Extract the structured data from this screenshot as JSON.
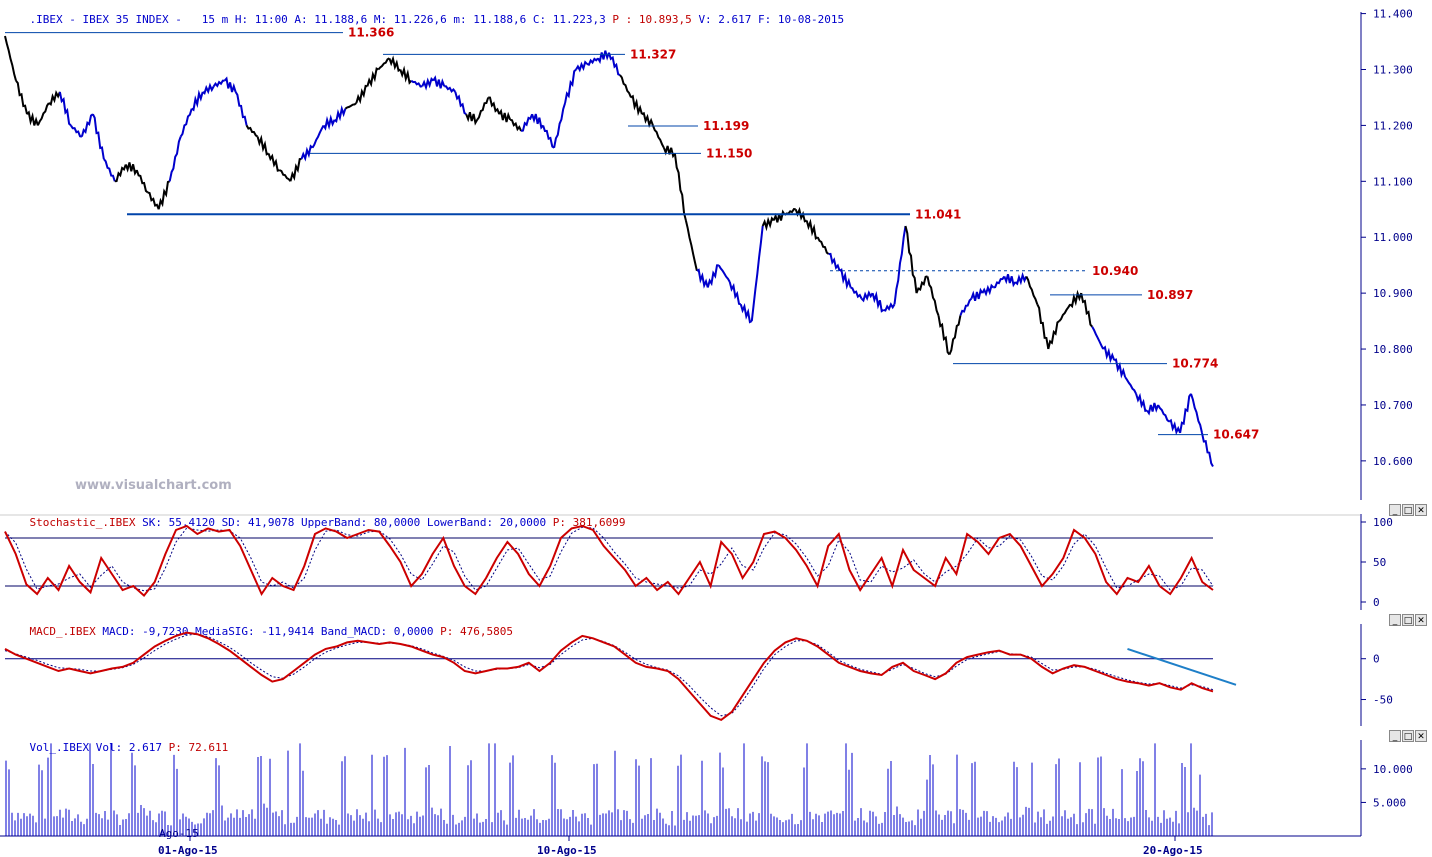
{
  "main_header": {
    "symbol": ".IBEX - IBEX 35 INDEX -",
    "interval": "15 m",
    "ohlc": "H: 11:00 A: 11.188,6 M: 11.226,6 m: 11.188,6 C: 11.223,3",
    "p_label": "P : 10.893,5",
    "vol_date": "V: 2.617 F: 10-08-2015"
  },
  "watermark": "www.visualchart.com",
  "window_buttons": {
    "minimize": "_",
    "restore": "□",
    "close": "✕"
  },
  "stoch_header": {
    "name": "Stochastic_.IBEX",
    "values": "SK: 55,4120 SD: 41,9078 UpperBand: 80,0000 LowerBand: 20,0000",
    "p": "P: 381,6099"
  },
  "macd_header": {
    "name": "MACD_.IBEX",
    "values": "MACD: -9,7230 MediaSIG: -11,9414 Band_MACD: 0,0000",
    "p": "P: 476,5805"
  },
  "vol_header": {
    "name": "Vol_.IBEX",
    "values": "Vol: 2.617",
    "p": "P: 72.611"
  },
  "colors": {
    "axis": "#00008b",
    "up": "#0000cc",
    "down": "#000000",
    "level": "#cc0000",
    "line": "#0044aa",
    "trend": "#1e7fc8"
  },
  "chart_data": [
    {
      "type": "line",
      "title": "IBEX 35 INDEX 15 m",
      "y_ticks": [
        "11.400",
        "11.300",
        "11.200",
        "11.100",
        "11.000",
        "10.900",
        "10.800",
        "10.700",
        "10.600"
      ],
      "ylim": [
        10.53,
        11.41
      ],
      "x_labels": [
        "01-Ago-15",
        "10-Ago-15",
        "20-Ago-15"
      ],
      "x_overlay_label": "Ago-15",
      "levels": [
        {
          "value": 11.366,
          "label": "11.366"
        },
        {
          "value": 11.327,
          "label": "11.327"
        },
        {
          "value": 11.199,
          "label": "11.199"
        },
        {
          "value": 11.15,
          "label": "11.150"
        },
        {
          "value": 11.041,
          "label": "11.041"
        },
        {
          "value": 10.94,
          "label": "10.940"
        },
        {
          "value": 10.897,
          "label": "10.897"
        },
        {
          "value": 10.774,
          "label": "10.774"
        },
        {
          "value": 10.647,
          "label": "10.647"
        }
      ],
      "close": [
        11.36,
        11.28,
        11.22,
        11.2,
        11.24,
        11.26,
        11.2,
        11.18,
        11.22,
        11.14,
        11.1,
        11.13,
        11.12,
        11.08,
        11.05,
        11.1,
        11.18,
        11.23,
        11.26,
        11.27,
        11.28,
        11.26,
        11.2,
        11.18,
        11.15,
        11.12,
        11.1,
        11.14,
        11.16,
        11.2,
        11.21,
        11.23,
        11.24,
        11.27,
        11.3,
        11.32,
        11.3,
        11.28,
        11.27,
        11.28,
        11.27,
        11.26,
        11.22,
        11.21,
        11.25,
        11.22,
        11.21,
        11.19,
        11.22,
        11.2,
        11.16,
        11.24,
        11.3,
        11.31,
        11.32,
        11.33,
        11.29,
        11.25,
        11.22,
        11.2,
        11.16,
        11.15,
        11.03,
        10.94,
        10.91,
        10.95,
        10.92,
        10.88,
        10.85,
        11.02,
        11.03,
        11.04,
        11.05,
        11.03,
        11.0,
        10.97,
        10.94,
        10.91,
        10.89,
        10.9,
        10.87,
        10.88,
        11.02,
        10.9,
        10.93,
        10.86,
        10.79,
        10.86,
        10.89,
        10.9,
        10.91,
        10.93,
        10.92,
        10.93,
        10.88,
        10.8,
        10.85,
        10.88,
        10.9,
        10.84,
        10.8,
        10.78,
        10.75,
        10.72,
        10.69,
        10.7,
        10.67,
        10.65,
        10.72,
        10.65,
        10.59
      ],
      "sessions_dark": [
        [
          0,
          4
        ],
        [
          10,
          14
        ],
        [
          22,
          26
        ],
        [
          31,
          36
        ],
        [
          42,
          46
        ],
        [
          56,
          62
        ],
        [
          69,
          74
        ],
        [
          82,
          86
        ],
        [
          93,
          98
        ]
      ]
    },
    {
      "type": "line",
      "title": "Stochastic_.IBEX",
      "ylim": [
        0,
        100
      ],
      "y_ticks": [
        "100",
        "50",
        "0"
      ],
      "bands": [
        80,
        20
      ],
      "series": [
        {
          "name": "SK",
          "values": [
            88,
            60,
            22,
            10,
            30,
            15,
            45,
            25,
            12,
            55,
            35,
            15,
            20,
            8,
            25,
            60,
            90,
            95,
            85,
            92,
            88,
            90,
            70,
            40,
            10,
            30,
            20,
            15,
            45,
            85,
            92,
            88,
            80,
            85,
            90,
            88,
            70,
            50,
            20,
            35,
            60,
            80,
            45,
            20,
            10,
            30,
            55,
            75,
            60,
            35,
            20,
            45,
            80,
            92,
            95,
            90,
            70,
            55,
            40,
            20,
            30,
            15,
            25,
            10,
            30,
            50,
            20,
            75,
            60,
            30,
            50,
            85,
            88,
            80,
            65,
            45,
            20,
            70,
            85,
            40,
            15,
            35,
            55,
            20,
            65,
            40,
            30,
            20,
            55,
            35,
            85,
            75,
            60,
            80,
            85,
            70,
            45,
            20,
            35,
            55,
            90,
            80,
            60,
            25,
            10,
            30,
            25,
            45,
            20,
            10,
            30,
            55,
            25,
            15
          ]
        }
      ]
    },
    {
      "type": "line",
      "title": "MACD_.IBEX",
      "ylim": [
        -80,
        45
      ],
      "y_ticks": [
        "0",
        "-50"
      ],
      "series": [
        {
          "name": "MACD",
          "values": [
            12,
            5,
            0,
            -5,
            -10,
            -15,
            -12,
            -15,
            -18,
            -15,
            -12,
            -10,
            -5,
            5,
            15,
            22,
            28,
            32,
            30,
            25,
            18,
            10,
            0,
            -10,
            -20,
            -28,
            -25,
            -15,
            -5,
            5,
            12,
            15,
            20,
            22,
            20,
            18,
            20,
            18,
            15,
            10,
            5,
            2,
            -5,
            -15,
            -18,
            -15,
            -12,
            -12,
            -10,
            -5,
            -15,
            -5,
            10,
            20,
            28,
            25,
            20,
            15,
            5,
            -5,
            -10,
            -12,
            -15,
            -25,
            -40,
            -55,
            -70,
            -75,
            -65,
            -45,
            -25,
            -5,
            10,
            20,
            25,
            22,
            15,
            5,
            -5,
            -10,
            -15,
            -18,
            -20,
            -10,
            -5,
            -15,
            -20,
            -25,
            -18,
            -5,
            2,
            5,
            8,
            10,
            5,
            5,
            0,
            -10,
            -18,
            -12,
            -8,
            -10,
            -15,
            -20,
            -25,
            -28,
            -30,
            -33,
            -30,
            -35,
            -38,
            -30,
            -36,
            -40
          ]
        },
        {
          "name": "MediaSIG",
          "values": [
            10,
            6,
            2,
            -2,
            -7,
            -11,
            -12,
            -13,
            -15,
            -15,
            -13,
            -11,
            -7,
            1,
            10,
            18,
            24,
            29,
            30,
            27,
            21,
            14,
            5,
            -5,
            -14,
            -22,
            -24,
            -19,
            -10,
            0,
            8,
            13,
            17,
            20,
            20,
            19,
            19,
            18,
            16,
            12,
            7,
            3,
            -2,
            -10,
            -15,
            -15,
            -13,
            -12,
            -11,
            -7,
            -11,
            -7,
            5,
            15,
            23,
            25,
            21,
            16,
            8,
            -1,
            -7,
            -11,
            -14,
            -21,
            -33,
            -47,
            -60,
            -70,
            -67,
            -52,
            -33,
            -12,
            5,
            15,
            22,
            22,
            17,
            8,
            -2,
            -8,
            -13,
            -16,
            -19,
            -13,
            -7,
            -12,
            -18,
            -22,
            -19,
            -9,
            -1,
            3,
            6,
            9,
            6,
            5,
            2,
            -6,
            -14,
            -13,
            -10,
            -10,
            -13,
            -18,
            -22,
            -26,
            -29,
            -31,
            -30,
            -33,
            -36,
            -32,
            -34,
            -38
          ]
        }
      ],
      "trendline": {
        "from": [
          105,
          12
        ],
        "to": [
          117,
          -32
        ]
      }
    },
    {
      "type": "bar",
      "title": "Vol_.IBEX",
      "ylim": [
        0,
        14000
      ],
      "y_ticks": [
        "10.000",
        "5.000"
      ],
      "seed": 7
    }
  ]
}
